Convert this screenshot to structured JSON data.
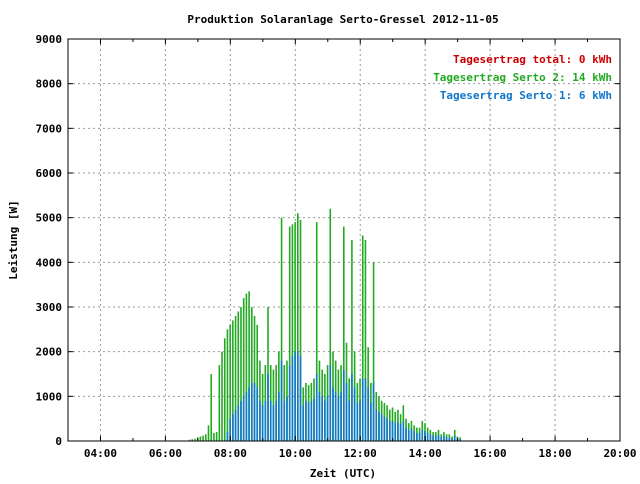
{
  "chart_data": {
    "type": "bar",
    "title": "Produktion Solaranlage Serto-Gressel 2012-11-05",
    "xlabel": "Zeit (UTC)",
    "ylabel": "Leistung [W]",
    "xlim": [
      "03:00",
      "20:00"
    ],
    "ylim": [
      0,
      9000
    ],
    "x_ticks": [
      "04:00",
      "06:00",
      "08:00",
      "10:00",
      "12:00",
      "14:00",
      "16:00",
      "18:00",
      "20:00"
    ],
    "y_ticks": [
      "0",
      "1000",
      "2000",
      "3000",
      "4000",
      "5000",
      "6000",
      "7000",
      "8000",
      "9000"
    ],
    "grid": true,
    "legend_position": "top-right",
    "legend": [
      {
        "label": "Tagesertrag total: 0 kWh",
        "color": "#cc0000"
      },
      {
        "label": "Tagesertrag Serto 2: 14 kWh",
        "color": "#22aa22"
      },
      {
        "label": "Tagesertrag Serto 1: 6 kWh",
        "color": "#1177cc"
      }
    ],
    "x": [
      "06:45",
      "06:50",
      "06:55",
      "07:00",
      "07:05",
      "07:10",
      "07:15",
      "07:20",
      "07:25",
      "07:30",
      "07:35",
      "07:40",
      "07:45",
      "07:50",
      "07:55",
      "08:00",
      "08:05",
      "08:10",
      "08:15",
      "08:20",
      "08:25",
      "08:30",
      "08:35",
      "08:40",
      "08:45",
      "08:50",
      "08:55",
      "09:00",
      "09:05",
      "09:10",
      "09:15",
      "09:20",
      "09:25",
      "09:30",
      "09:35",
      "09:40",
      "09:45",
      "09:50",
      "09:55",
      "10:00",
      "10:05",
      "10:10",
      "10:15",
      "10:20",
      "10:25",
      "10:30",
      "10:35",
      "10:40",
      "10:45",
      "10:50",
      "10:55",
      "11:00",
      "11:05",
      "11:10",
      "11:15",
      "11:20",
      "11:25",
      "11:30",
      "11:35",
      "11:40",
      "11:45",
      "11:50",
      "11:55",
      "12:00",
      "12:05",
      "12:10",
      "12:15",
      "12:20",
      "12:25",
      "12:30",
      "12:35",
      "12:40",
      "12:45",
      "12:50",
      "12:55",
      "13:00",
      "13:05",
      "13:10",
      "13:15",
      "13:20",
      "13:25",
      "13:30",
      "13:35",
      "13:40",
      "13:45",
      "13:50",
      "13:55",
      "14:00",
      "14:05",
      "14:10",
      "14:15",
      "14:20",
      "14:25",
      "14:30",
      "14:35",
      "14:40",
      "14:45",
      "14:50",
      "14:55",
      "15:00",
      "15:05"
    ],
    "series": [
      {
        "name": "Serto 2",
        "color": "#22aa22",
        "values": [
          30,
          40,
          50,
          80,
          100,
          120,
          150,
          350,
          1500,
          180,
          200,
          1700,
          2000,
          2300,
          2500,
          2600,
          2700,
          2800,
          2900,
          3000,
          3200,
          3300,
          3350,
          3000,
          2800,
          2600,
          1800,
          1500,
          1700,
          3000,
          1700,
          1600,
          1700,
          2000,
          5000,
          1700,
          1800,
          4800,
          4850,
          4900,
          5100,
          4950,
          1200,
          1300,
          1250,
          1300,
          1400,
          4900,
          1800,
          1600,
          1500,
          1700,
          5200,
          2000,
          1800,
          1600,
          1700,
          4800,
          2200,
          1400,
          4500,
          2000,
          1300,
          1400,
          4600,
          4500,
          2100,
          1300,
          4000,
          1100,
          1000,
          900,
          850,
          800,
          700,
          750,
          650,
          700,
          600,
          800,
          500,
          400,
          450,
          350,
          300,
          300,
          450,
          400,
          300,
          250,
          200,
          200,
          250,
          150,
          200,
          150,
          150,
          100,
          250,
          100,
          80
        ],
        "serto1_values": [
          0,
          0,
          0,
          0,
          0,
          0,
          0,
          0,
          0,
          0,
          0,
          0,
          0,
          0,
          200,
          500,
          600,
          700,
          800,
          900,
          1000,
          1100,
          1200,
          1300,
          1300,
          1200,
          900,
          800,
          900,
          1500,
          900,
          800,
          900,
          1100,
          1800,
          900,
          1000,
          1700,
          1900,
          2000,
          2000,
          1900,
          800,
          900,
          850,
          900,
          950,
          1500,
          1100,
          1000,
          900,
          1000,
          1700,
          1200,
          1100,
          1000,
          1100,
          1600,
          1300,
          900,
          1500,
          1200,
          850,
          900,
          1400,
          1400,
          1200,
          850,
          1300,
          700,
          650,
          600,
          550,
          500,
          450,
          450,
          400,
          420,
          380,
          450,
          300,
          250,
          280,
          220,
          180,
          180,
          250,
          220,
          180,
          150,
          120,
          120,
          140,
          90,
          110,
          80,
          80,
          60,
          120,
          50,
          40
        ]
      }
    ]
  }
}
